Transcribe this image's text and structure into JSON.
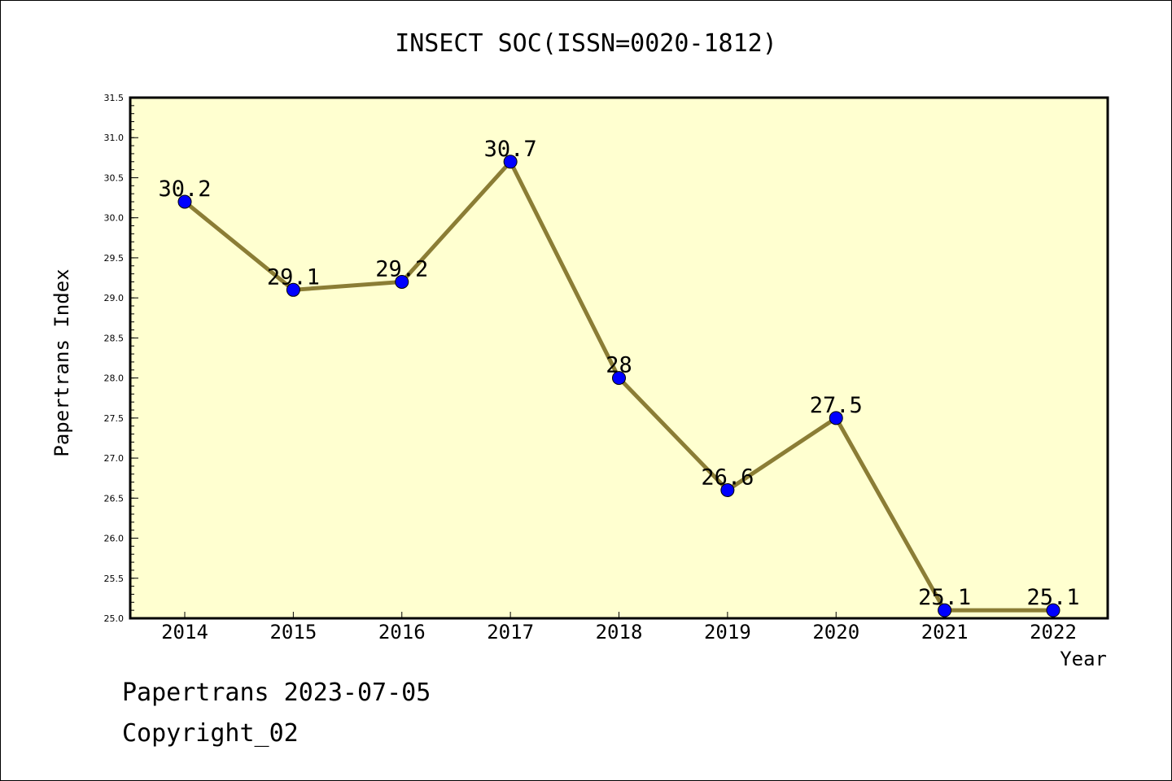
{
  "chart_data": {
    "type": "line",
    "title": "INSECT SOC(ISSN=0020-1812)",
    "xlabel": "Year",
    "ylabel": "Papertrans Index",
    "x": [
      "2014",
      "2015",
      "2016",
      "2017",
      "2018",
      "2019",
      "2020",
      "2021",
      "2022"
    ],
    "series": [
      {
        "values": [
          30.2,
          29.1,
          29.2,
          30.7,
          28,
          26.6,
          27.5,
          25.1,
          25.1
        ]
      }
    ],
    "data_labels": [
      "30.2",
      "29.1",
      "29.2",
      "30.7",
      "28",
      "26.6",
      "27.5",
      "25.1",
      "25.1"
    ],
    "ylim": [
      25.0,
      31.5
    ],
    "yticks": [
      "25.0",
      "25.5",
      "26.0",
      "26.5",
      "27.0",
      "27.5",
      "28.0",
      "28.5",
      "29.0",
      "29.5",
      "30.0",
      "30.5",
      "31.0",
      "31.5"
    ],
    "grid": false,
    "colors": {
      "plot_background": "#ffffd0",
      "line": "#8b7d35",
      "marker": "#0000ff"
    }
  },
  "footer": {
    "line1": "Papertrans 2023-07-05",
    "line2": "Copyright_02"
  }
}
